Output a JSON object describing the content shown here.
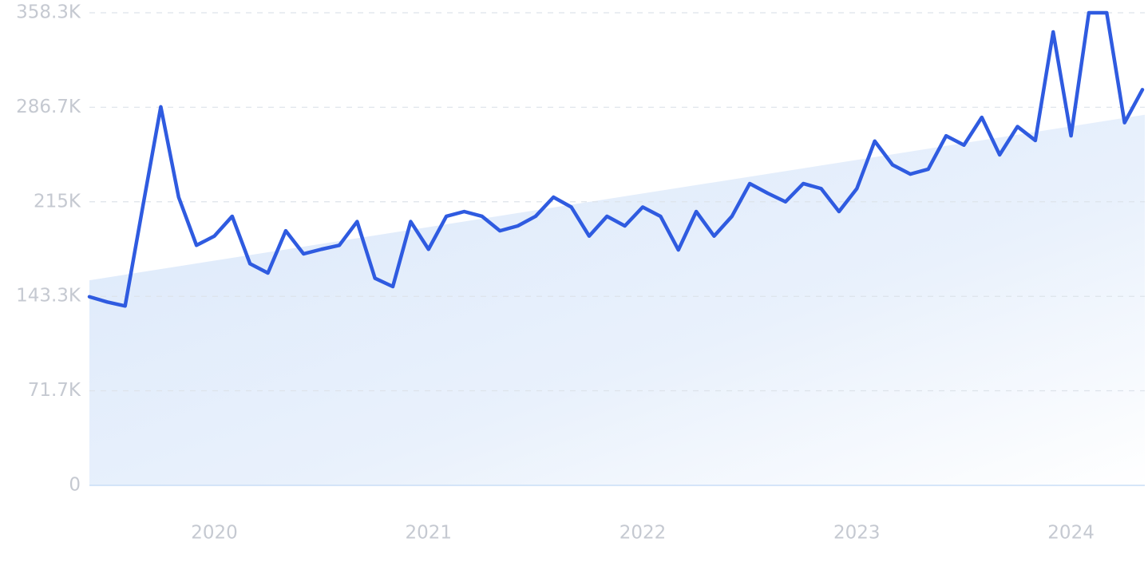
{
  "chart_data": {
    "type": "line",
    "x": [
      "2019-06",
      "2019-07",
      "2019-08",
      "2019-09",
      "2019-10",
      "2019-11",
      "2019-12",
      "2020-01",
      "2020-02",
      "2020-03",
      "2020-04",
      "2020-05",
      "2020-06",
      "2020-07",
      "2020-08",
      "2020-09",
      "2020-10",
      "2020-11",
      "2020-12",
      "2021-01",
      "2021-02",
      "2021-03",
      "2021-04",
      "2021-05",
      "2021-06",
      "2021-07",
      "2021-08",
      "2021-09",
      "2021-10",
      "2021-11",
      "2021-12",
      "2022-01",
      "2022-02",
      "2022-03",
      "2022-04",
      "2022-05",
      "2022-06",
      "2022-07",
      "2022-08",
      "2022-09",
      "2022-10",
      "2022-11",
      "2022-12",
      "2023-01",
      "2023-02",
      "2023-03",
      "2023-04",
      "2023-05",
      "2023-06",
      "2023-07",
      "2023-08",
      "2023-09",
      "2023-10",
      "2023-11",
      "2023-12",
      "2024-01",
      "2024-02",
      "2024-03",
      "2024-04",
      "2024-05"
    ],
    "series": [
      {
        "color": "#2f5be0",
        "values": [
          143000,
          139000,
          136000,
          212000,
          287000,
          218500,
          182000,
          189000,
          204000,
          168000,
          161000,
          193000,
          175500,
          179000,
          182000,
          200000,
          157000,
          150700,
          200000,
          179000,
          204000,
          207600,
          204000,
          193000,
          196700,
          204000,
          218500,
          211000,
          189000,
          204000,
          196700,
          211000,
          204000,
          178500,
          207600,
          189000,
          204000,
          228800,
          221500,
          215000,
          228800,
          225000,
          207600,
          225000,
          261000,
          243000,
          236000,
          239700,
          265000,
          258000,
          279000,
          250600,
          272000,
          261500,
          343800,
          265000,
          358300,
          358300,
          275000,
          300000
        ]
      }
    ],
    "trend": {
      "values": [
        155500,
        281000
      ]
    },
    "ylim": [
      0,
      358300
    ],
    "yticks": [
      0,
      {
        "value": 71700,
        "label": "71.7K"
      },
      {
        "value": 143300,
        "label": "143.3K"
      },
      {
        "value": 215000,
        "label": "215K"
      },
      {
        "value": 286700,
        "label": "286.7K"
      },
      {
        "value": 358300,
        "label": "358.3K"
      }
    ],
    "xticks": [
      {
        "value": "2020-01",
        "label": "2020"
      },
      {
        "value": "2021-01",
        "label": "2021"
      },
      {
        "value": "2022-01",
        "label": "2022"
      },
      {
        "value": "2023-01",
        "label": "2023"
      },
      {
        "value": "2024-01",
        "label": "2024"
      }
    ],
    "grid": true
  }
}
